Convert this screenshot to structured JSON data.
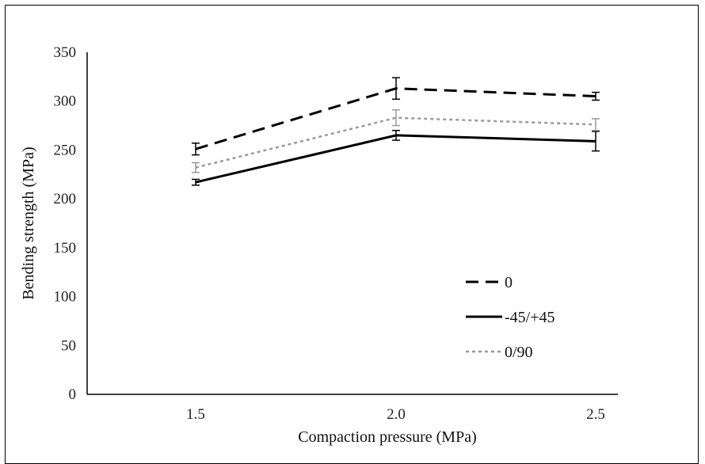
{
  "chart_data": {
    "type": "line",
    "title": "",
    "xlabel": "Compaction pressure (MPa)",
    "ylabel": "Bending strength (MPa)",
    "categories": [
      "1.5",
      "2.0",
      "2.5"
    ],
    "y_ticks": [
      "0",
      "50",
      "100",
      "150",
      "200",
      "250",
      "300",
      "350"
    ],
    "ylim": [
      0,
      350
    ],
    "grid": false,
    "legend_position": "bottom-right",
    "series": [
      {
        "name": "0",
        "values": [
          251,
          313,
          305
        ],
        "errors": [
          6,
          11,
          4
        ],
        "color": "#000000",
        "style": "dashed"
      },
      {
        "name": "-45/+45",
        "values": [
          217,
          265,
          259
        ],
        "errors": [
          3,
          5,
          10
        ],
        "color": "#000000",
        "style": "solid"
      },
      {
        "name": "0/90",
        "values": [
          232,
          283,
          276
        ],
        "errors": [
          5,
          8,
          6
        ],
        "color": "#9a9a9a",
        "style": "dotted"
      }
    ]
  }
}
